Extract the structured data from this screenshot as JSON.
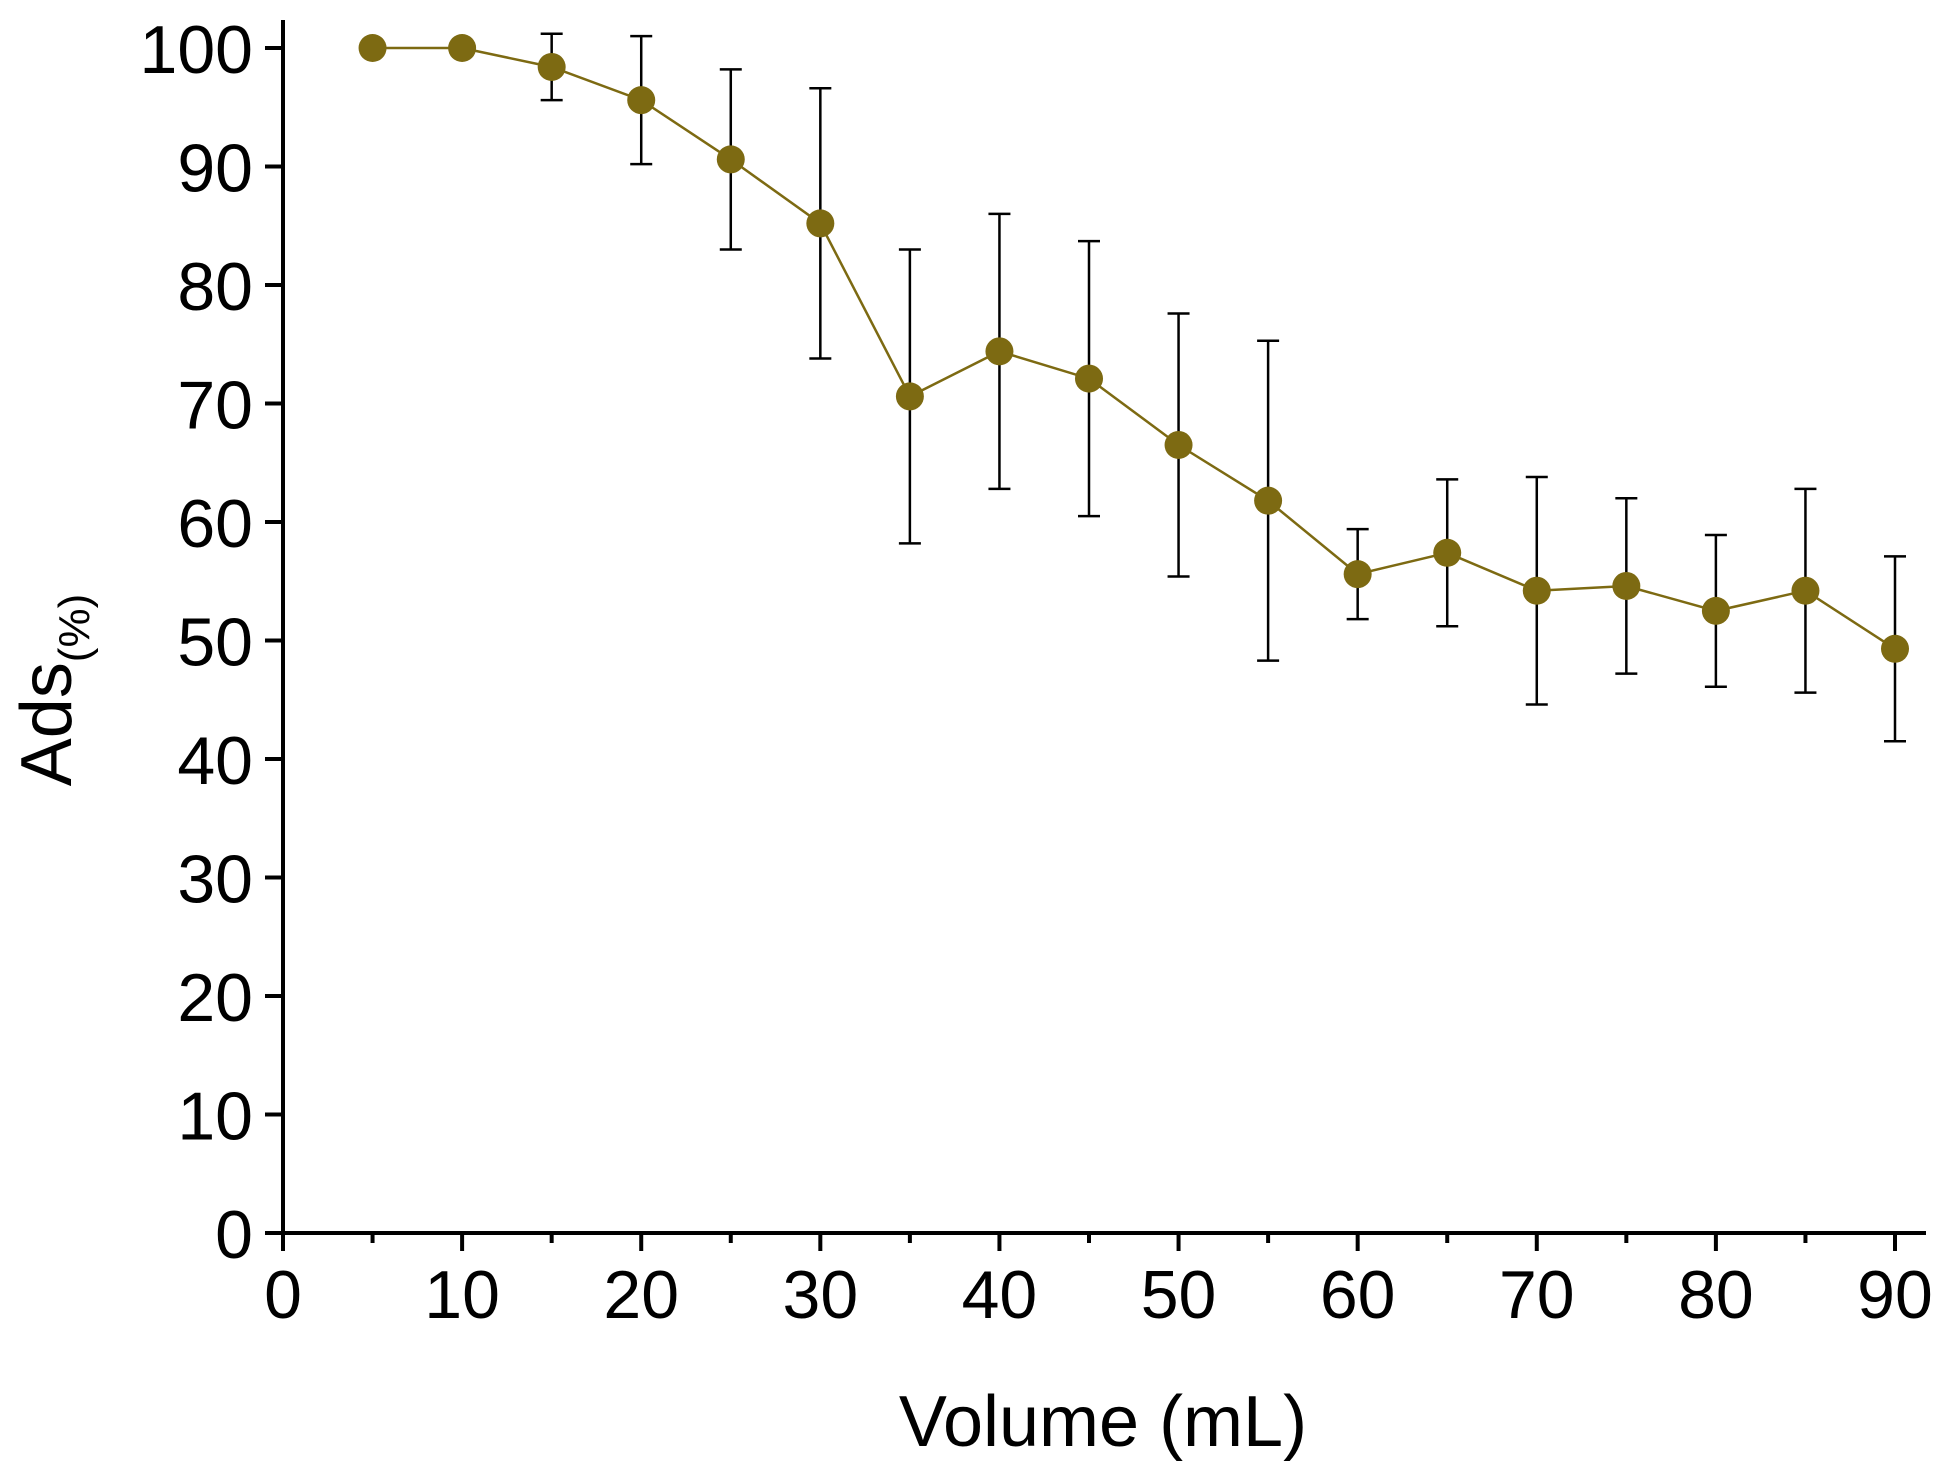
{
  "chart_data": {
    "type": "line",
    "title": "",
    "xlabel": "Volume (mL)",
    "ylabel": "Ads",
    "ylabel_subscript": "(%)",
    "xlim": [
      0,
      92
    ],
    "ylim": [
      0,
      102
    ],
    "x_ticks": [
      0,
      10,
      20,
      30,
      40,
      50,
      60,
      70,
      80,
      90
    ],
    "x_minor_ticks": [
      5,
      15,
      25,
      35,
      45,
      55,
      65,
      75,
      85
    ],
    "y_ticks": [
      0,
      10,
      20,
      30,
      40,
      50,
      60,
      70,
      80,
      90,
      100
    ],
    "grid": false,
    "color": "#7d6a12",
    "series": [
      {
        "name": "Ads(%)",
        "x": [
          5,
          10,
          15,
          20,
          25,
          30,
          35,
          40,
          45,
          50,
          55,
          60,
          65,
          70,
          75,
          80,
          85,
          90
        ],
        "y": [
          100,
          100,
          98.4,
          95.6,
          90.6,
          85.2,
          70.6,
          74.4,
          72.1,
          66.5,
          61.8,
          55.6,
          57.4,
          54.2,
          54.6,
          52.5,
          54.2,
          49.3
        ],
        "err_low": [
          0,
          0,
          2.8,
          5.4,
          7.6,
          11.4,
          12.4,
          11.6,
          11.6,
          11.1,
          13.5,
          3.8,
          6.2,
          9.6,
          7.4,
          6.4,
          8.6,
          7.8
        ],
        "err_high": [
          0,
          0,
          2.8,
          5.4,
          7.6,
          11.4,
          12.4,
          11.6,
          11.6,
          11.1,
          13.5,
          3.8,
          6.2,
          9.6,
          7.4,
          6.4,
          8.6,
          7.8
        ]
      }
    ]
  }
}
